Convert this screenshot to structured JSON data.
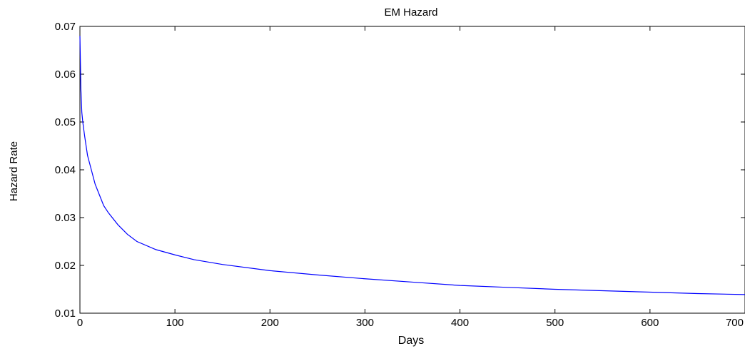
{
  "chart_data": {
    "type": "line",
    "title": "EM Hazard",
    "xlabel": "Days",
    "ylabel": "Hazard Rate",
    "xlim": [
      0,
      700
    ],
    "ylim": [
      0.01,
      0.07
    ],
    "xticks": [
      "0",
      "100",
      "200",
      "300",
      "400",
      "500",
      "600",
      "700"
    ],
    "yticks": [
      "0.01",
      "0.02",
      "0.03",
      "0.04",
      "0.05",
      "0.06",
      "0.07"
    ],
    "grid": false,
    "line_color": "#0000ff",
    "series": [
      {
        "x": [
          0,
          1,
          2,
          3,
          5,
          8,
          12,
          16,
          20,
          25,
          30,
          40,
          50,
          60,
          80,
          100,
          120,
          150,
          200,
          250,
          300,
          350,
          400,
          450,
          500,
          550,
          600,
          650,
          700
        ],
        "values": [
          0.068,
          0.057,
          0.052,
          0.05,
          0.047,
          0.043,
          0.04,
          0.037,
          0.035,
          0.0325,
          0.031,
          0.0285,
          0.0265,
          0.025,
          0.0233,
          0.0222,
          0.0212,
          0.0202,
          0.0189,
          0.018,
          0.0172,
          0.0165,
          0.0158,
          0.0154,
          0.015,
          0.0147,
          0.0144,
          0.0141,
          0.0139
        ]
      }
    ]
  }
}
